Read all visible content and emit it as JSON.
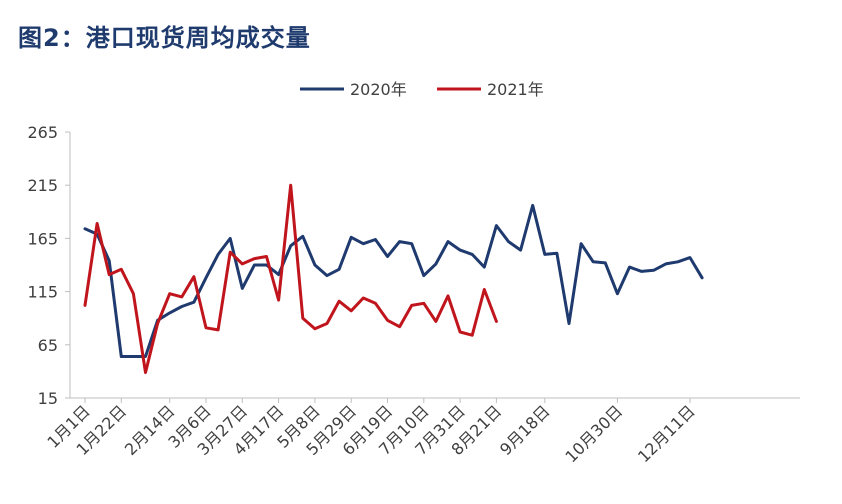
{
  "chart_data": {
    "type": "line",
    "title": "图2：港口现货周均成交量",
    "xlabel": "",
    "ylabel": "",
    "ylim": [
      15,
      265
    ],
    "yticks": [
      "265",
      "215",
      "165",
      "115",
      "65",
      "15"
    ],
    "xtick_labels": [
      "1月1日",
      "1月22日",
      "2月14日",
      "3月6日",
      "3月27日",
      "4月17日",
      "5月8日",
      "5月29日",
      "6月19日",
      "7月10日",
      "7月31日",
      "8月21日",
      "9月18日",
      "10月30日",
      "12月11日"
    ],
    "xtick_index": [
      0,
      3,
      7,
      10,
      13,
      16,
      19,
      22,
      25,
      28,
      31,
      34,
      38,
      44,
      50
    ],
    "legend_position": "top-center",
    "grid": false,
    "series": [
      {
        "name": "2020年",
        "color": "#1f3a6e",
        "values": [
          174,
          169,
          144,
          54,
          54,
          54,
          88,
          95,
          101,
          105,
          128,
          150,
          165,
          118,
          140,
          140,
          131,
          158,
          167,
          140,
          130,
          136,
          166,
          160,
          164,
          148,
          162,
          160,
          130,
          141,
          162,
          154,
          150,
          138,
          177,
          162,
          154,
          196,
          150,
          151,
          85,
          160,
          143,
          142,
          113,
          138,
          134,
          135,
          141,
          143,
          147,
          128
        ]
      },
      {
        "name": "2021年",
        "color": "#c0151c",
        "values": [
          102,
          179,
          131,
          136,
          113,
          39,
          85,
          113,
          110,
          129,
          81,
          79,
          152,
          141,
          146,
          148,
          107,
          215,
          90,
          80,
          85,
          106,
          97,
          109,
          104,
          88,
          82,
          102,
          104,
          87,
          111,
          77,
          74,
          117,
          87
        ]
      }
    ]
  }
}
